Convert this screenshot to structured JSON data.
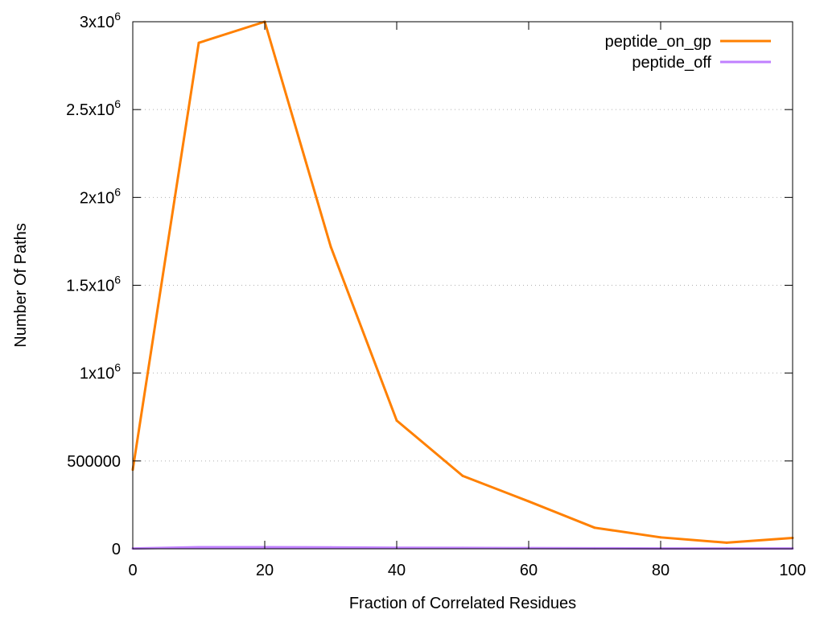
{
  "chart_data": {
    "type": "line",
    "title": "",
    "xlabel": "Fraction of Correlated Residues",
    "ylabel": "Number Of Paths",
    "xlim": [
      0,
      100
    ],
    "ylim": [
      0,
      3000000
    ],
    "x_ticks": [
      0,
      20,
      40,
      60,
      80,
      100
    ],
    "x_tick_labels": [
      "0",
      "20",
      "40",
      "60",
      "80",
      "100"
    ],
    "y_ticks": [
      0,
      500000,
      1000000,
      1500000,
      2000000,
      2500000,
      3000000
    ],
    "y_tick_labels": [
      {
        "base": "0",
        "exp": ""
      },
      {
        "base": "500000",
        "exp": ""
      },
      {
        "base": "1x10",
        "exp": "6"
      },
      {
        "base": "1.5x10",
        "exp": "6"
      },
      {
        "base": "2x10",
        "exp": "6"
      },
      {
        "base": "2.5x10",
        "exp": "6"
      },
      {
        "base": "3x10",
        "exp": "6"
      }
    ],
    "grid": true,
    "legend_position": "top-right",
    "x": [
      0,
      10,
      20,
      30,
      40,
      50,
      60,
      70,
      80,
      90,
      100
    ],
    "series": [
      {
        "name": "peptide_on_gp",
        "color": "#ff8000",
        "values": [
          450000,
          2880000,
          3000000,
          1720000,
          730000,
          415000,
          270000,
          120000,
          65000,
          35000,
          62000
        ]
      },
      {
        "name": "peptide_off",
        "color": "#c080ff",
        "values": [
          2000,
          9000,
          9000,
          8000,
          6000,
          5000,
          4000,
          3000,
          2000,
          1500,
          1500
        ]
      }
    ]
  }
}
